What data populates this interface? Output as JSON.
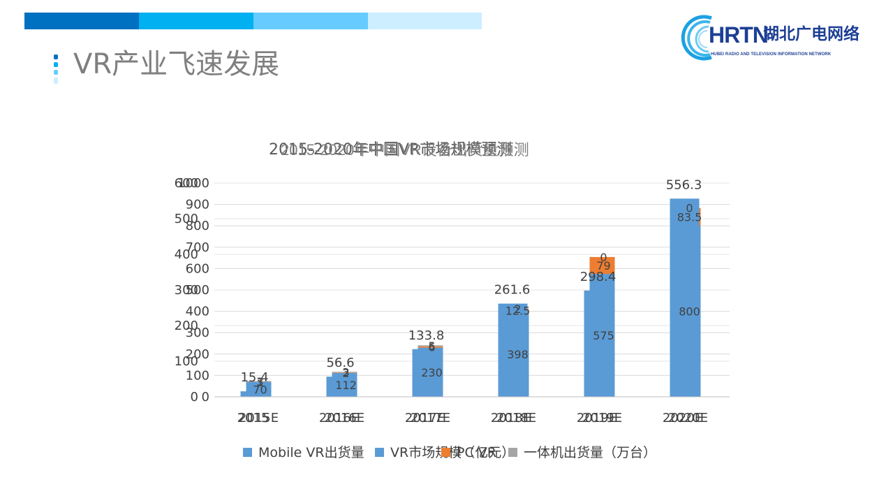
{
  "slide": {
    "title": "VR产业飞速发展",
    "colors": {
      "bar_1": "#0070c0",
      "bar_2": "#00b0f0",
      "bar_3": "#66ccff",
      "bar_4": "#cceeff",
      "title": "#7f7f7f",
      "logo": "#1c3f94"
    }
  },
  "logo": {
    "mark": "HRTN",
    "name": "湖北广电网络",
    "subtitle": "HUBEI RADIO AND TELEVISION INFORMATION NETWORK",
    "icon": "swirl-logo-icon"
  },
  "chart_data": [
    {
      "type": "bar",
      "title": "2015-2020年中国VR市场规模预测",
      "categories": [
        "2015",
        "2016E",
        "2017E",
        "2018E",
        "2019E",
        "2020E"
      ],
      "series": [
        {
          "name": "VR市场规模（亿元）",
          "values": [
            15.4,
            56.6,
            133.8,
            261.6,
            298.4,
            556.3
          ],
          "color": "#5b9bd5"
        }
      ],
      "ylim": [
        0,
        600
      ],
      "yticks": [
        0,
        100,
        200,
        300,
        400,
        500,
        600
      ],
      "data_labels": true,
      "grid": true,
      "legend": "bottom"
    },
    {
      "type": "bar",
      "stacked": true,
      "title": "2015-2020年中国VR设备出货量预测",
      "categories": [
        "2015E",
        "2016E",
        "2017E",
        "2018E",
        "2019E",
        "2020E"
      ],
      "series": [
        {
          "name": "Mobile VR出货量",
          "values": [
            70,
            112,
            230,
            398,
            575,
            800
          ],
          "color": "#5b9bd5"
        },
        {
          "name": "PC VR",
          "values": [
            1,
            2,
            6,
            12.5,
            79,
            83.5
          ],
          "color": "#ed7d31"
        },
        {
          "name": "一体机出货量（万台）",
          "values": [
            3,
            3,
            5,
            2,
            0,
            0
          ],
          "color": "#a5a5a5"
        }
      ],
      "ylim": [
        0,
        1000
      ],
      "yticks": [
        0,
        100,
        200,
        300,
        400,
        500,
        600,
        700,
        800,
        900,
        1000
      ],
      "data_labels": true,
      "grid": true,
      "legend": "bottom"
    }
  ]
}
